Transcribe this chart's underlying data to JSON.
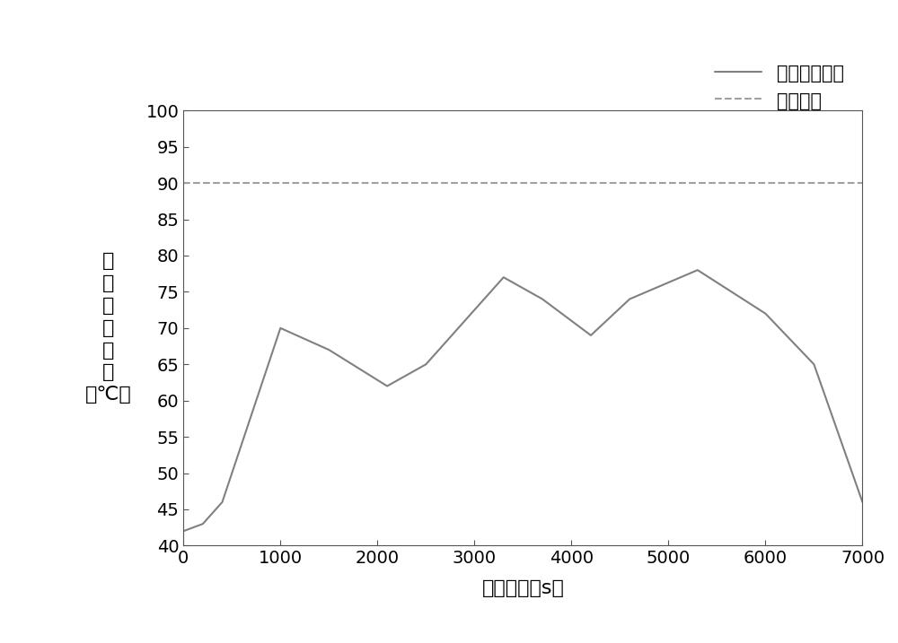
{
  "x_data": [
    0,
    200,
    400,
    1000,
    1500,
    2100,
    2500,
    3300,
    3700,
    4200,
    4600,
    5300,
    6000,
    6500,
    7000
  ],
  "y_data": [
    42,
    43,
    46,
    70,
    67,
    62,
    65,
    77,
    74,
    69,
    74,
    78,
    72,
    65,
    46
  ],
  "threshold": 90,
  "xlim": [
    0,
    7000
  ],
  "ylim": [
    40,
    100
  ],
  "xticks": [
    0,
    1000,
    2000,
    3000,
    4000,
    5000,
    6000,
    7000
  ],
  "yticks": [
    40,
    45,
    50,
    55,
    60,
    65,
    70,
    75,
    80,
    85,
    90,
    95,
    100
  ],
  "xlabel": "行驶时间（s）",
  "ylabel_lines": [
    "油",
    "冷",
    "电",
    "机",
    "温",
    "度",
    "（℃）"
  ],
  "legend_curve": "温度变化曲线",
  "legend_threshold": "过温阈值",
  "line_color": "#808080",
  "threshold_color": "#a0a0a0",
  "background_color": "#ffffff",
  "xlabel_fontsize": 16,
  "ylabel_fontsize": 16,
  "tick_fontsize": 14,
  "legend_fontsize": 15
}
